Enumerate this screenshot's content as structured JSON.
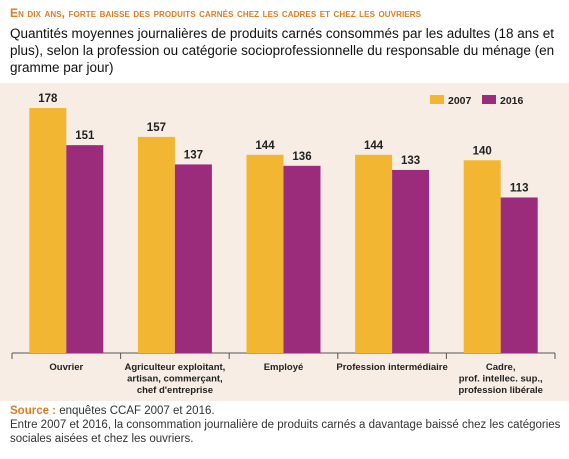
{
  "header": {
    "title": "En dix ans, forte baisse des produits carnés chez les cadres et chez les ouvriers",
    "subtitle": "Quantités moyennes journalières de produits carnés consommés par les adultes (18 ans et plus), selon la profession ou catégorie socioprofessionnelle du responsable du ménage (en gramme par jour)"
  },
  "footer": {
    "source_label": "Source :",
    "source_text": " enquêtes CCAF 2007 et 2016.",
    "note": "Entre 2007 et 2016, la consommation journalière de produits carnés a davantage baissé chez les catégories sociales aisées et chez les ouvriers."
  },
  "chart_data": {
    "type": "bar",
    "categories": [
      [
        "Ouvrier"
      ],
      [
        "Agriculteur exploitant,",
        "artisan, commerçant,",
        "chef d'entreprise"
      ],
      [
        "Employé"
      ],
      [
        "Profession intermédiaire"
      ],
      [
        "Cadre,",
        "prof. intellec. sup.,",
        "profession libérale"
      ]
    ],
    "series": [
      {
        "name": "2007",
        "values": [
          178,
          157,
          144,
          144,
          140
        ],
        "color": "#f2b632"
      },
      {
        "name": "2016",
        "values": [
          151,
          137,
          136,
          133,
          113
        ],
        "color": "#9b2c7c"
      }
    ],
    "ylim": [
      0,
      178
    ],
    "grid": false,
    "legend_position": "top-right",
    "background": "#f7ede4"
  }
}
